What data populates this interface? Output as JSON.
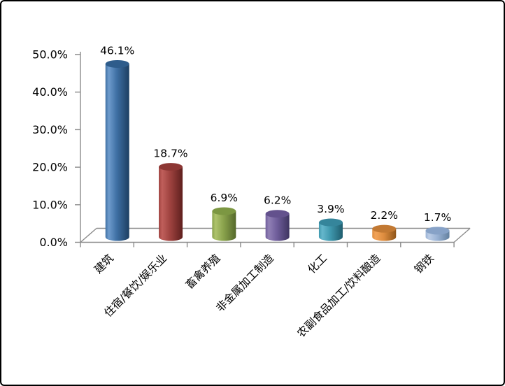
{
  "chart_data": {
    "type": "bar",
    "subtype": "3d-cylinder-column",
    "title": "",
    "xlabel": "",
    "ylabel": "",
    "categories": [
      "建筑",
      "住宿/餐饮/娱乐业",
      "畜禽养殖",
      "非金属加工制造",
      "化工",
      "农副食品加工/饮料酿造",
      "钢铁"
    ],
    "values": [
      46.1,
      18.7,
      6.9,
      6.2,
      3.9,
      2.2,
      1.7
    ],
    "value_labels": [
      "46.1%",
      "18.7%",
      "6.9%",
      "6.2%",
      "3.9%",
      "2.2%",
      "1.7%"
    ],
    "ylim": [
      0,
      50
    ],
    "ytick_step": 10,
    "ytick_labels": [
      "0.0%",
      "10.0%",
      "20.0%",
      "30.0%",
      "40.0%",
      "50.0%"
    ],
    "grid": false,
    "legend": "none",
    "axis_color": "#8C8C8C",
    "text_color": "#000000",
    "background_color": "#FFFFFF",
    "frame_border_color": "#000000",
    "bar_colors": [
      {
        "name": "blue",
        "top": "#2E5C8B",
        "light": "#6E9CCD",
        "base": "#3E6FA3",
        "dark": "#1D3E61"
      },
      {
        "name": "red",
        "top": "#8D3734",
        "light": "#C05F5B",
        "base": "#9E423F",
        "dark": "#5E1F1D"
      },
      {
        "name": "green",
        "top": "#7C9742",
        "light": "#AEC36C",
        "base": "#89A24C",
        "dark": "#55682B"
      },
      {
        "name": "purple",
        "top": "#63518D",
        "light": "#9180B5",
        "base": "#6F5D9B",
        "dark": "#3E3460"
      },
      {
        "name": "teal",
        "top": "#35859B",
        "light": "#66B7CC",
        "base": "#3F98AE",
        "dark": "#1F5D6E"
      },
      {
        "name": "orange",
        "top": "#C27933",
        "light": "#F2A358",
        "base": "#DE8D3F",
        "dark": "#8F5519"
      },
      {
        "name": "light-blue",
        "top": "#87A2C7",
        "light": "#BCCDE6",
        "base": "#9AB3D5",
        "dark": "#63809F"
      }
    ]
  }
}
